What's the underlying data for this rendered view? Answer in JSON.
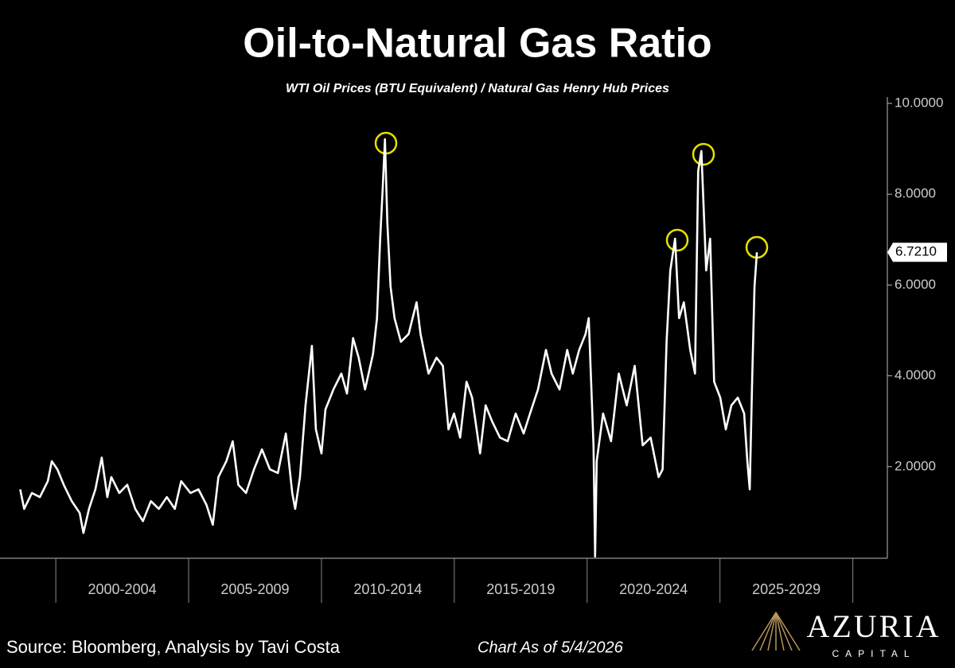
{
  "chart_data": {
    "type": "line",
    "title": "Oil-to-Natural Gas Ratio",
    "subtitle": "WTI Oil Prices (BTU Equivalent) / Natural Gas Henry Hub Prices",
    "x": [
      1998.66,
      1998.81,
      1999.1,
      1999.4,
      1999.7,
      1999.85,
      2000.06,
      2000.3,
      2000.6,
      2000.9,
      2001.04,
      2001.25,
      2001.49,
      2001.73,
      2001.94,
      2002.09,
      2002.39,
      2002.69,
      2002.99,
      2003.28,
      2003.58,
      2003.88,
      2004.18,
      2004.48,
      2004.72,
      2005.07,
      2005.37,
      2005.67,
      2005.91,
      2006.12,
      2006.42,
      2006.66,
      2006.87,
      2007.16,
      2007.46,
      2007.76,
      2008.06,
      2008.36,
      2008.66,
      2008.9,
      2009.01,
      2009.19,
      2009.4,
      2009.64,
      2009.79,
      2010.0,
      2010.15,
      2010.45,
      2010.75,
      2010.96,
      2011.19,
      2011.4,
      2011.64,
      2011.94,
      2012.09,
      2012.21,
      2012.3,
      2012.39,
      2012.48,
      2012.6,
      2012.75,
      2012.99,
      2013.28,
      2013.58,
      2013.73,
      2014.03,
      2014.33,
      2014.57,
      2014.78,
      2014.99,
      2015.22,
      2015.46,
      2015.67,
      2015.97,
      2016.18,
      2016.42,
      2016.72,
      2017.01,
      2017.31,
      2017.61,
      2017.85,
      2018.15,
      2018.45,
      2018.66,
      2018.96,
      2019.25,
      2019.46,
      2019.7,
      2019.94,
      2020.06,
      2020.24,
      2020.3,
      2020.36,
      2020.6,
      2020.9,
      2021.19,
      2021.49,
      2021.79,
      2022.09,
      2022.39,
      2022.69,
      2022.84,
      2022.99,
      2023.13,
      2023.31,
      2023.46,
      2023.64,
      2023.88,
      2024.06,
      2024.18,
      2024.3,
      2024.48,
      2024.63,
      2024.78,
      2025.01,
      2025.22,
      2025.43,
      2025.67,
      2025.91,
      2026.03,
      2026.12,
      2026.21,
      2026.3,
      2026.39
    ],
    "series": [
      {
        "color": "#ffffff",
        "values": [
          1.5,
          1.07,
          1.42,
          1.33,
          1.68,
          2.12,
          1.94,
          1.6,
          1.24,
          0.98,
          0.54,
          1.07,
          1.5,
          2.2,
          1.33,
          1.77,
          1.42,
          1.6,
          1.07,
          0.8,
          1.24,
          1.07,
          1.33,
          1.07,
          1.68,
          1.42,
          1.5,
          1.16,
          0.72,
          1.77,
          2.12,
          2.56,
          1.6,
          1.42,
          1.94,
          2.38,
          1.94,
          1.86,
          2.73,
          1.42,
          1.07,
          1.77,
          3.35,
          4.66,
          2.82,
          2.29,
          3.26,
          3.7,
          4.05,
          3.61,
          4.83,
          4.4,
          3.7,
          4.48,
          5.27,
          7.02,
          8.07,
          9.21,
          7.37,
          5.97,
          5.27,
          4.75,
          4.92,
          5.62,
          4.92,
          4.05,
          4.4,
          4.22,
          2.82,
          3.17,
          2.64,
          3.87,
          3.52,
          2.29,
          3.35,
          3.0,
          2.64,
          2.56,
          3.17,
          2.73,
          3.17,
          3.7,
          4.57,
          4.05,
          3.7,
          4.57,
          4.05,
          4.57,
          4.92,
          5.27,
          2.47,
          0.02,
          2.12,
          3.17,
          2.56,
          4.05,
          3.35,
          4.22,
          2.47,
          2.64,
          1.77,
          1.94,
          4.75,
          6.32,
          7.02,
          5.27,
          5.62,
          4.57,
          4.05,
          8.51,
          8.95,
          6.32,
          7.02,
          3.87,
          3.52,
          2.82,
          3.35,
          3.52,
          3.17,
          2.12,
          1.5,
          3.87,
          5.97,
          6.721
        ],
        "value_labels": [
          null,
          null,
          null,
          null,
          null,
          null,
          null,
          null,
          null,
          null,
          null,
          null,
          null,
          null,
          null,
          null,
          null,
          null,
          null,
          null,
          null,
          null,
          null,
          null,
          null,
          null,
          null,
          null,
          null,
          null,
          null,
          null,
          null,
          null,
          null,
          null,
          null,
          null,
          null,
          null,
          null,
          null,
          null,
          null,
          null,
          null,
          null,
          null,
          null,
          null,
          null,
          null,
          null,
          null,
          null,
          null,
          null,
          null,
          null,
          null,
          null,
          null,
          null,
          null,
          null,
          null,
          null,
          null,
          null,
          null,
          null,
          null,
          null,
          null,
          null,
          null,
          null,
          null,
          null,
          null,
          null,
          null,
          null,
          null,
          null,
          null,
          null,
          null,
          null,
          null,
          null,
          null,
          null,
          null,
          null,
          null,
          null,
          null,
          null,
          null,
          null,
          null,
          null,
          null,
          null,
          null,
          null,
          null,
          null,
          null,
          null,
          null,
          null,
          null,
          null,
          null,
          null,
          null,
          null,
          null,
          null,
          null,
          null,
          "6.7210"
        ]
      }
    ],
    "xlim": [
      1997.9,
      2031.3
    ],
    "periods": [
      {
        "label": "2000-2004",
        "start": 2000,
        "end": 2005
      },
      {
        "label": "2005-2009",
        "start": 2005,
        "end": 2010
      },
      {
        "label": "2010-2014",
        "start": 2010,
        "end": 2015
      },
      {
        "label": "2015-2019",
        "start": 2015,
        "end": 2020
      },
      {
        "label": "2020-2024",
        "start": 2020,
        "end": 2025
      },
      {
        "label": "2025-2029",
        "start": 2025,
        "end": 2030
      }
    ],
    "ylim": [
      0,
      10
    ],
    "yticks": [
      {
        "value": 2,
        "label": "2.0000"
      },
      {
        "value": 4,
        "label": "4.0000"
      },
      {
        "value": 6,
        "label": "6.0000"
      },
      {
        "value": 8,
        "label": "8.0000"
      },
      {
        "value": 10,
        "label": "10.0000"
      }
    ],
    "source": "Source: Bloomberg, Analysis by Tavi Costa",
    "note": "Chart As of 5/4/2026"
  },
  "branding": {
    "name": "AZURIA",
    "tagline": "CAPITAL"
  }
}
